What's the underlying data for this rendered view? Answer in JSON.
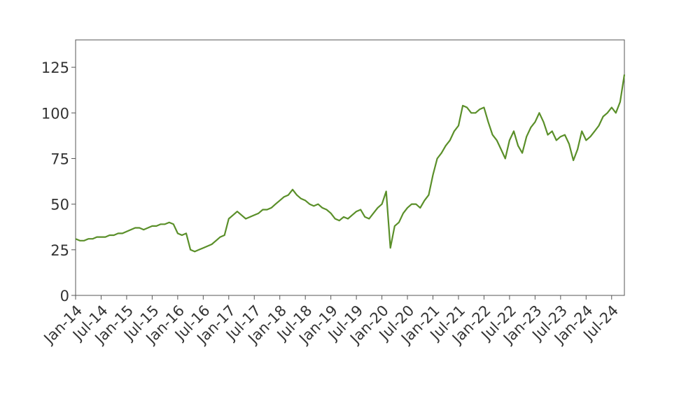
{
  "chart_data": {
    "type": "line",
    "x": [
      "2014-01",
      "2014-02",
      "2014-03",
      "2014-04",
      "2014-05",
      "2014-06",
      "2014-07",
      "2014-08",
      "2014-09",
      "2014-10",
      "2014-11",
      "2014-12",
      "2015-01",
      "2015-02",
      "2015-03",
      "2015-04",
      "2015-05",
      "2015-06",
      "2015-07",
      "2015-08",
      "2015-09",
      "2015-10",
      "2015-11",
      "2015-12",
      "2016-01",
      "2016-02",
      "2016-03",
      "2016-04",
      "2016-05",
      "2016-06",
      "2016-07",
      "2016-08",
      "2016-09",
      "2016-10",
      "2016-11",
      "2016-12",
      "2017-01",
      "2017-02",
      "2017-03",
      "2017-04",
      "2017-05",
      "2017-06",
      "2017-07",
      "2017-08",
      "2017-09",
      "2017-10",
      "2017-11",
      "2017-12",
      "2018-01",
      "2018-02",
      "2018-03",
      "2018-04",
      "2018-05",
      "2018-06",
      "2018-07",
      "2018-08",
      "2018-09",
      "2018-10",
      "2018-11",
      "2018-12",
      "2019-01",
      "2019-02",
      "2019-03",
      "2019-04",
      "2019-05",
      "2019-06",
      "2019-07",
      "2019-08",
      "2019-09",
      "2019-10",
      "2019-11",
      "2019-12",
      "2020-01",
      "2020-02",
      "2020-03",
      "2020-04",
      "2020-05",
      "2020-06",
      "2020-07",
      "2020-08",
      "2020-09",
      "2020-10",
      "2020-11",
      "2020-12",
      "2021-01",
      "2021-02",
      "2021-03",
      "2021-04",
      "2021-05",
      "2021-06",
      "2021-07",
      "2021-08",
      "2021-09",
      "2021-10",
      "2021-11",
      "2021-12",
      "2022-01",
      "2022-02",
      "2022-03",
      "2022-04",
      "2022-05",
      "2022-06",
      "2022-07",
      "2022-08",
      "2022-09",
      "2022-10",
      "2022-11",
      "2022-12",
      "2023-01",
      "2023-02",
      "2023-03",
      "2023-04",
      "2023-05",
      "2023-06",
      "2023-07",
      "2023-08",
      "2023-09",
      "2023-10",
      "2023-11",
      "2023-12",
      "2024-01",
      "2024-02",
      "2024-03",
      "2024-04",
      "2024-05",
      "2024-06",
      "2024-07",
      "2024-08",
      "2024-09",
      "2024-10"
    ],
    "series": [
      {
        "color": "#5a8f29",
        "values": [
          31,
          30,
          30,
          31,
          31,
          32,
          32,
          32,
          33,
          33,
          34,
          34,
          35,
          36,
          37,
          37,
          36,
          37,
          38,
          38,
          39,
          39,
          40,
          39,
          34,
          33,
          34,
          25,
          24,
          25,
          26,
          27,
          28,
          30,
          32,
          33,
          42,
          44,
          46,
          44,
          42,
          43,
          44,
          45,
          47,
          47,
          48,
          50,
          52,
          54,
          55,
          58,
          55,
          53,
          52,
          50,
          49,
          50,
          48,
          47,
          45,
          42,
          41,
          43,
          42,
          44,
          46,
          47,
          43,
          42,
          45,
          48,
          50,
          57,
          26,
          38,
          40,
          45,
          48,
          50,
          50,
          48,
          52,
          55,
          66,
          75,
          78,
          82,
          85,
          90,
          93,
          104,
          103,
          100,
          100,
          102,
          103,
          95,
          88,
          85,
          80,
          75,
          85,
          90,
          82,
          78,
          87,
          92,
          95,
          100,
          95,
          88,
          90,
          85,
          87,
          88,
          83,
          74,
          80,
          90,
          85,
          87,
          90,
          93,
          98,
          100,
          103,
          100,
          106,
          121
        ]
      }
    ],
    "xlim": [
      "2014-01",
      "2024-10"
    ],
    "xticks": [
      {
        "value": "2014-01",
        "label": "Jan-14"
      },
      {
        "value": "2014-07",
        "label": "Jul-14"
      },
      {
        "value": "2015-01",
        "label": "Jan-15"
      },
      {
        "value": "2015-07",
        "label": "Jul-15"
      },
      {
        "value": "2016-01",
        "label": "Jan-16"
      },
      {
        "value": "2016-07",
        "label": "Jul-16"
      },
      {
        "value": "2017-01",
        "label": "Jan-17"
      },
      {
        "value": "2017-07",
        "label": "Jul-17"
      },
      {
        "value": "2018-01",
        "label": "Jan-18"
      },
      {
        "value": "2018-07",
        "label": "Jul-18"
      },
      {
        "value": "2019-01",
        "label": "Jan-19"
      },
      {
        "value": "2019-07",
        "label": "Jul-19"
      },
      {
        "value": "2020-01",
        "label": "Jan-20"
      },
      {
        "value": "2020-07",
        "label": "Jul-20"
      },
      {
        "value": "2021-01",
        "label": "Jan-21"
      },
      {
        "value": "2021-07",
        "label": "Jul-21"
      },
      {
        "value": "2022-01",
        "label": "Jan-22"
      },
      {
        "value": "2022-07",
        "label": "Jul-22"
      },
      {
        "value": "2023-01",
        "label": "Jan-23"
      },
      {
        "value": "2023-07",
        "label": "Jul-23"
      },
      {
        "value": "2024-01",
        "label": "Jan-24"
      },
      {
        "value": "2024-07",
        "label": "Jul-24"
      }
    ],
    "ylim": [
      0,
      140
    ],
    "yticks": [
      0,
      25,
      50,
      75,
      100,
      125
    ],
    "grid": false
  }
}
